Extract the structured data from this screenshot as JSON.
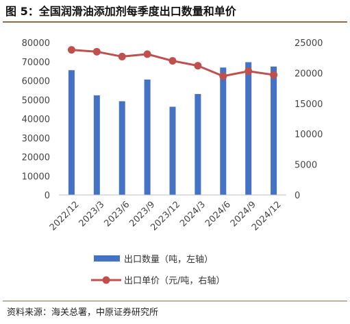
{
  "figure": {
    "title": "图 5：全国润滑油添加剂每季度出口数量和单价",
    "source": "资料来源：海关总署，中原证券研究所"
  },
  "colors": {
    "bar": "#4472c4",
    "line": "#c0504d",
    "rule": "#8a6d4a"
  },
  "chart_data": {
    "type": "bar",
    "categories": [
      "2022/12",
      "2023/3",
      "2023/6",
      "2023/9",
      "2023/12",
      "2024/3",
      "2024/6",
      "2024/9",
      "2024/12"
    ],
    "series": [
      {
        "name": "出口数量（吨，左轴）",
        "type": "bar",
        "axis": "left",
        "values": [
          65500,
          52300,
          49200,
          60600,
          46300,
          53000,
          66900,
          69700,
          67400
        ]
      },
      {
        "name": "出口单价（元/吨，右轴）",
        "type": "line",
        "axis": "right",
        "values": [
          23800,
          23500,
          22700,
          23100,
          22000,
          21200,
          19500,
          20300,
          19700
        ]
      }
    ],
    "y_left": {
      "range": [
        0,
        80000
      ],
      "ticks": [
        "0",
        "10000",
        "20000",
        "30000",
        "40000",
        "50000",
        "60000",
        "70000",
        "80000"
      ]
    },
    "y_right": {
      "range": [
        0,
        25000
      ],
      "ticks": [
        "0",
        "5000",
        "10000",
        "15000",
        "20000",
        "25000"
      ]
    },
    "grid": false,
    "legend_placement": "bottom"
  }
}
